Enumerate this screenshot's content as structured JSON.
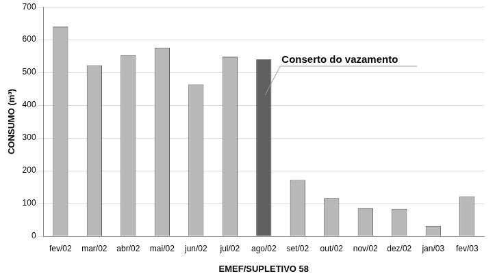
{
  "chart_data": {
    "type": "bar",
    "categories": [
      "fev/02",
      "mar/02",
      "abr/02",
      "mai/02",
      "jun/02",
      "jul/02",
      "ago/02",
      "set/02",
      "out/02",
      "nov/02",
      "dez/02",
      "jan/03",
      "fev/03"
    ],
    "values": [
      640,
      522,
      553,
      576,
      464,
      548,
      540,
      172,
      116,
      86,
      84,
      32,
      122
    ],
    "colors": [
      "#b8b8b8",
      "#b8b8b8",
      "#b8b8b8",
      "#b8b8b8",
      "#b8b8b8",
      "#b8b8b8",
      "#5f5f5f",
      "#b8b8b8",
      "#b8b8b8",
      "#b8b8b8",
      "#b8b8b8",
      "#b8b8b8",
      "#b8b8b8"
    ],
    "x_label": "EMEF/SUPLETIVO 58",
    "y_label": "CONSUMO (m³)",
    "ylim": [
      0,
      700
    ],
    "yticks": [
      0,
      100,
      200,
      300,
      400,
      500,
      600,
      700
    ],
    "grid": true,
    "annotations": [
      {
        "text": "Conserto do vazamento",
        "category": "ago/02"
      }
    ]
  }
}
